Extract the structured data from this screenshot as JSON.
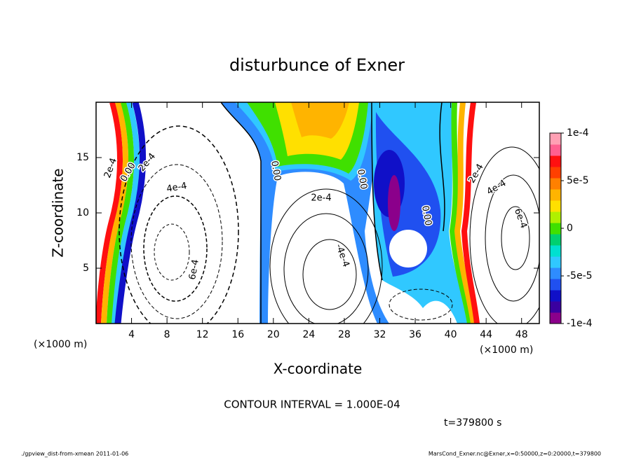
{
  "chart_data": {
    "type": "contour",
    "title": "disturbunce of Exner",
    "x_label": "X-coordinate",
    "y_label": "Z-coordinate",
    "x_unit_left": "(×1000 m)",
    "x_unit_right": "(×1000 m)",
    "xlim": [
      0,
      50
    ],
    "xticks": [
      4,
      8,
      12,
      16,
      20,
      24,
      28,
      32,
      36,
      40,
      44,
      48
    ],
    "ylim": [
      0,
      20
    ],
    "yticks": [
      5,
      10,
      15
    ],
    "colorbar": {
      "lim": [
        -0.0001,
        0.0001
      ],
      "ticks": [
        {
          "value": 0.0001,
          "label": "1e-4"
        },
        {
          "value": 5e-05,
          "label": "5e-5"
        },
        0,
        {
          "value": -5e-05,
          "label": "-5e-5"
        },
        {
          "value": -0.0001,
          "label": "-1e-4"
        }
      ],
      "colors": [
        "#8b008b",
        "#3a00a0",
        "#1010c8",
        "#2050f0",
        "#2e8cff",
        "#30c8ff",
        "#00e0d0",
        "#00d070",
        "#40e000",
        "#b0f000",
        "#ffe000",
        "#ffb400",
        "#ff8000",
        "#ff4000",
        "#ff1010",
        "#ff6090",
        "#ffa0b4"
      ]
    },
    "contour_labels": [
      "2e-4",
      "0.00",
      "2e-4",
      "4e-4",
      "6e-4",
      "0.00",
      "2e-4",
      "-4e-4",
      "0.00",
      "0.00",
      "2e-4",
      "4e-4",
      "6e-4"
    ],
    "contour_interval": "CONTOUR INTERVAL = 1.000E-04",
    "time": "t=379800 s",
    "footer_left": "./gpview_dist-from-xmean  2011-01-06",
    "footer_right": "MarsCond_Exner.nc@Exner,x=0:50000,z=0:20000,t=379800"
  }
}
